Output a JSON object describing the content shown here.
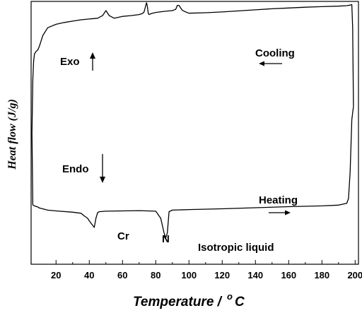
{
  "chart_data": {
    "type": "line",
    "title": "",
    "xlabel": "Temperature /",
    "xlabel_superscript": "o",
    "xlabel_unit": "C",
    "ylabel": "Heat flow (J/g)",
    "xlim": [
      5,
      202
    ],
    "ylim": [
      0,
      100
    ],
    "xticks": [
      20,
      40,
      60,
      80,
      100,
      120,
      140,
      160,
      180,
      200
    ],
    "xtick_labels": [
      "20",
      "40",
      "60",
      "80",
      "100",
      "120",
      "140",
      "160",
      "180",
      "200"
    ],
    "y_tick_labels_shown": false,
    "grid": false,
    "annotations": {
      "exo": "Exo",
      "endo": "Endo",
      "cooling": "Cooling",
      "heating": "Heating",
      "cr": "Cr",
      "n": "N",
      "iso": "Isotropic liquid"
    },
    "series": [
      {
        "x": [
          5.5,
          6,
          6.5,
          7,
          8,
          9,
          10,
          12,
          15,
          20,
          25,
          30,
          35,
          40,
          45,
          48,
          50,
          52,
          55,
          60,
          65,
          70,
          72,
          73,
          74,
          74.5,
          75,
          75.5,
          76,
          77,
          78,
          80,
          85,
          90,
          92,
          93,
          94,
          95,
          96,
          98,
          100,
          110,
          120,
          130,
          140,
          150,
          160,
          170,
          180,
          190,
          195,
          197,
          198,
          198.5,
          199
        ],
        "y": [
          50,
          70,
          77,
          80,
          81,
          81.5,
          83,
          87,
          90,
          91.3,
          92,
          92.5,
          93,
          93.3,
          93.6,
          94.6,
          96.5,
          94.6,
          93.6,
          94.3,
          94.6,
          95,
          95.4,
          96,
          98.5,
          99.5,
          98,
          95.4,
          95,
          95.3,
          95.5,
          95.8,
          96.2,
          96.5,
          97,
          98.5,
          98.5,
          97.5,
          96.6,
          96,
          95.5,
          95.7,
          96,
          96.4,
          96.8,
          97.2,
          97.5,
          97.8,
          98,
          98.2,
          98.4,
          98.6,
          98.8,
          90,
          60
        ]
      },
      {
        "x": [
          5.5,
          6,
          7,
          8,
          9,
          10,
          15,
          20,
          30,
          35,
          37,
          39,
          40,
          42,
          43,
          44,
          45,
          46,
          50,
          60,
          70,
          80,
          83,
          85,
          86,
          87,
          88,
          90,
          100,
          120,
          140,
          160,
          180,
          190,
          195,
          196,
          197,
          198,
          199
        ],
        "y": [
          50,
          22.6,
          22.2,
          22,
          21.8,
          21.4,
          20.6,
          20.3,
          19.8,
          19.4,
          18.4,
          17.5,
          16.5,
          14.8,
          14,
          17.5,
          19.6,
          20,
          20.2,
          20.3,
          20.4,
          20.2,
          17.5,
          12,
          10,
          12,
          20,
          20.6,
          20.8,
          21.1,
          21.5,
          21.9,
          22.2,
          22.5,
          23.2,
          25,
          35,
          55,
          60
        ]
      }
    ]
  }
}
